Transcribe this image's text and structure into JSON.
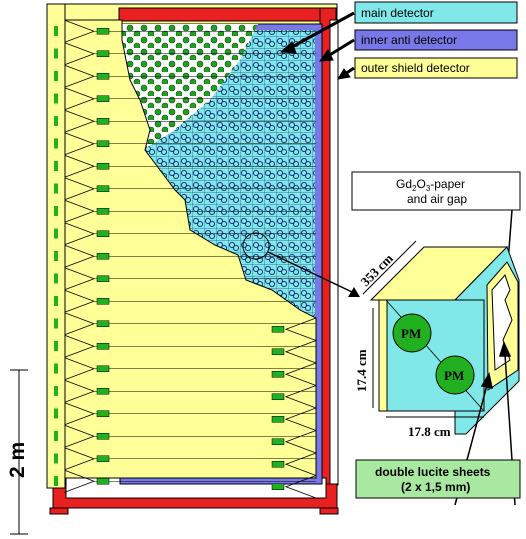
{
  "legend": {
    "main_detector": "main detector",
    "inner_anti_detector": "inner anti detector",
    "outer_shield_detector": "outer shield detector"
  },
  "callouts": {
    "gd_paper_line1": "Gd",
    "gd_paper_sub2": "2",
    "gd_paper_O": "O",
    "gd_paper_sub3": "3",
    "gd_paper_suffix": "-paper",
    "gd_paper_line2": "and air gap",
    "lucite_line1": "double lucite sheets",
    "lucite_line2": "(2 x 1,5 mm)"
  },
  "dimensions": {
    "length": "353 cm",
    "height": "17.4 cm",
    "width": "17.8 cm",
    "scale": "2 m"
  },
  "pm_label": "PM",
  "colors": {
    "main_detector": "#80e8e8",
    "inner_anti": "#7878e8",
    "outer_shield": "#ffff98",
    "frame_red": "#e82020",
    "pm_green": "#20b020",
    "light_guide": "#ffff98"
  }
}
